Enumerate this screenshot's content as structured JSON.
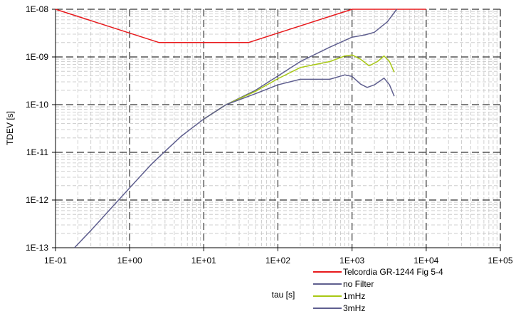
{
  "chart_data": {
    "type": "line",
    "title": "",
    "xlabel": "tau [s]",
    "ylabel": "TDEV [s]",
    "x_scale": "log",
    "y_scale": "log",
    "xlim": [
      0.1,
      100000
    ],
    "ylim": [
      1e-13,
      1e-08
    ],
    "x_ticks": [
      {
        "value": 0.1,
        "label": "1E-01"
      },
      {
        "value": 1,
        "label": "1E+00"
      },
      {
        "value": 10,
        "label": "1E+01"
      },
      {
        "value": 100,
        "label": "1E+02"
      },
      {
        "value": 1000,
        "label": "1E+03"
      },
      {
        "value": 10000,
        "label": "1E+04"
      },
      {
        "value": 100000,
        "label": "1E+05"
      }
    ],
    "y_ticks": [
      {
        "value": 1e-13,
        "label": "1E-13"
      },
      {
        "value": 1e-12,
        "label": "1E-12"
      },
      {
        "value": 1e-11,
        "label": "1E-11"
      },
      {
        "value": 1e-10,
        "label": "1E-10"
      },
      {
        "value": 1e-09,
        "label": "1E-09"
      },
      {
        "value": 1e-08,
        "label": "1E-08"
      }
    ],
    "grid": {
      "major": "dashed",
      "minor": "dashed"
    },
    "legend_position": "bottom-right",
    "series": [
      {
        "name": "Telcordia GR-1244 Fig 5-4",
        "color": "#e8191c",
        "points": [
          [
            0.1,
            1e-08
          ],
          [
            2.5,
            2e-09
          ],
          [
            40,
            2e-09
          ],
          [
            1000,
            1e-08
          ],
          [
            10000,
            1e-08
          ]
        ]
      },
      {
        "name": "no Filter",
        "color": "#5f5f8f",
        "points": [
          [
            0.18,
            1e-13
          ],
          [
            0.3,
            2.3e-13
          ],
          [
            0.5,
            5.5e-13
          ],
          [
            1,
            1.8e-12
          ],
          [
            2,
            5.8e-12
          ],
          [
            3,
            1.05e-11
          ],
          [
            5,
            2.2e-11
          ],
          [
            10,
            5e-11
          ],
          [
            20,
            1e-10
          ],
          [
            50,
            2e-10
          ],
          [
            100,
            4e-10
          ],
          [
            200,
            8e-10
          ],
          [
            500,
            1.6e-09
          ],
          [
            1000,
            2.6e-09
          ],
          [
            1500,
            2.9e-09
          ],
          [
            2000,
            3.3e-09
          ],
          [
            3000,
            5.5e-09
          ],
          [
            4000,
            1e-08
          ]
        ]
      },
      {
        "name": "1mHz",
        "color": "#a8c814",
        "points": [
          [
            10,
            5e-11
          ],
          [
            20,
            1e-10
          ],
          [
            50,
            1.9e-10
          ],
          [
            100,
            3.5e-10
          ],
          [
            200,
            6e-10
          ],
          [
            500,
            8e-10
          ],
          [
            800,
            1.05e-09
          ],
          [
            1000,
            1.1e-09
          ],
          [
            1300,
            9e-10
          ],
          [
            1700,
            6.5e-10
          ],
          [
            2200,
            8e-10
          ],
          [
            2700,
            1.05e-09
          ],
          [
            3200,
            8e-10
          ],
          [
            3700,
            4.8e-10
          ]
        ]
      },
      {
        "name": "3mHz",
        "color": "#5f5f8f",
        "points": [
          [
            10,
            5e-11
          ],
          [
            20,
            1e-10
          ],
          [
            50,
            1.7e-10
          ],
          [
            100,
            2.6e-10
          ],
          [
            200,
            3.4e-10
          ],
          [
            500,
            3.4e-10
          ],
          [
            800,
            4.2e-10
          ],
          [
            1000,
            3.9e-10
          ],
          [
            1300,
            2.7e-10
          ],
          [
            1600,
            2.3e-10
          ],
          [
            2000,
            2.6e-10
          ],
          [
            2700,
            3.6e-10
          ],
          [
            3200,
            2.6e-10
          ],
          [
            3700,
            1.5e-10
          ]
        ]
      }
    ]
  }
}
